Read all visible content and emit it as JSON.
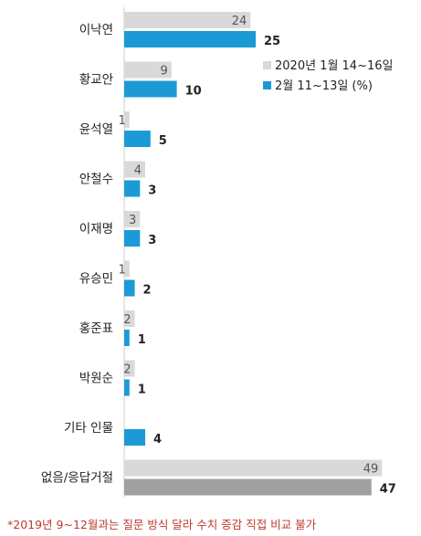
{
  "chart_data": {
    "type": "bar",
    "orientation": "horizontal",
    "categories": [
      "이낙연",
      "황교안",
      "윤석열",
      "안철수",
      "이재명",
      "유승민",
      "홍준표",
      "박원순",
      "기타 인물",
      "없음/응답거절"
    ],
    "series": [
      {
        "name": "2020년 1월 14~16일",
        "color": "#d9d9d9",
        "values": [
          24,
          9,
          1,
          4,
          3,
          1,
          2,
          2,
          null,
          49
        ]
      },
      {
        "name": "2월 11~13일 (%)",
        "color": "#1b9ad6",
        "values": [
          25,
          10,
          5,
          3,
          3,
          2,
          1,
          1,
          4,
          47
        ]
      }
    ],
    "value_labels": {
      "prev": [
        "24",
        "9",
        "1",
        "4",
        "3",
        "1",
        "2",
        "2",
        "",
        "49"
      ],
      "curr": [
        "25",
        "10",
        "5",
        "3",
        "3",
        "2",
        "1",
        "1",
        "4",
        "47"
      ]
    },
    "last_category_curr_color": "#a0a0a0",
    "xlim": [
      0,
      50
    ],
    "legend_position": "top-right",
    "grid": false
  },
  "footnote": "*2019년 9~12월과는 질문 방식 달라 수치 증감 직접 비교 불가"
}
